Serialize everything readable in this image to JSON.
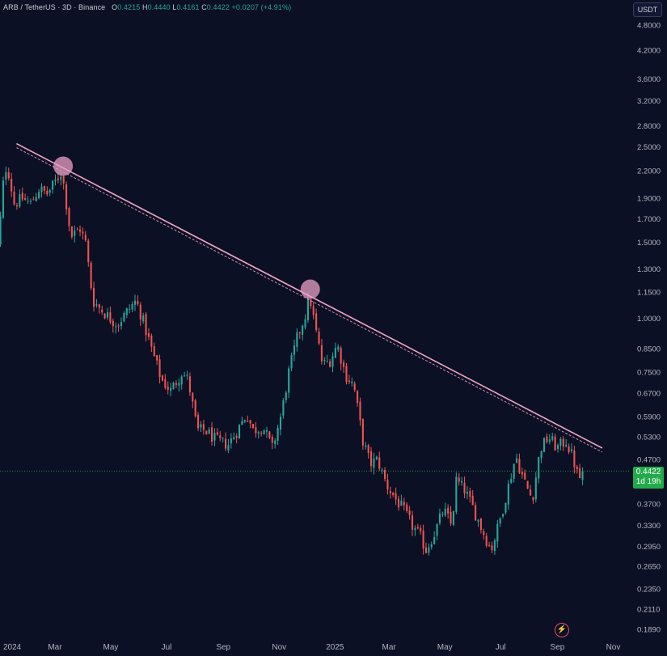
{
  "header": {
    "symbol": "ARB / TetherUS · 3D · Binance",
    "o_label": "O",
    "o_value": "0.4215",
    "h_label": "H",
    "h_value": "0.4440",
    "l_label": "L",
    "l_value": "0.4161",
    "c_label": "C",
    "c_value": "0.4422",
    "change": "+0.0207 (+4.91%)"
  },
  "unit_label": "USDT",
  "price_badge": {
    "price": "0.4422",
    "countdown": "1d 19h"
  },
  "colors": {
    "background": "#0c1024",
    "up": "#26a69a",
    "down": "#ef5350",
    "trendline": "#f2a6c8",
    "touch_point": "#e8a0c6",
    "current_price_line": "#22ab4a"
  },
  "chart_data": {
    "type": "candlestick",
    "interval": "3D",
    "y_scale": "log",
    "ylim": [
      0.18,
      5.0
    ],
    "xlim": [
      "2024-01-01",
      "2025-11-20"
    ],
    "y_ticks": [
      4.8,
      4.2,
      3.6,
      3.2,
      2.8,
      2.5,
      2.2,
      1.9,
      1.7,
      1.5,
      1.3,
      1.15,
      1.0,
      0.85,
      0.75,
      0.67,
      0.59,
      0.53,
      0.47,
      0.37,
      0.33,
      0.295,
      0.265,
      0.235,
      0.211,
      0.189
    ],
    "y_tick_labels": [
      "4.8000",
      "4.2000",
      "3.6000",
      "3.2000",
      "2.8000",
      "2.5000",
      "2.2000",
      "1.9000",
      "1.7000",
      "1.5000",
      "1.3000",
      "1.1500",
      "1.0000",
      "0.8500",
      "0.7500",
      "0.6700",
      "0.5900",
      "0.5300",
      "0.4700",
      "0.3700",
      "0.3300",
      "0.2950",
      "0.2650",
      "0.2350",
      "0.2110",
      "0.1890"
    ],
    "x_ticks": [
      {
        "date": "2024-01-01",
        "label": "2024"
      },
      {
        "date": "2024-03-01",
        "label": "Mar"
      },
      {
        "date": "2024-05-01",
        "label": "May"
      },
      {
        "date": "2024-07-01",
        "label": "Jul"
      },
      {
        "date": "2024-09-01",
        "label": "Sep"
      },
      {
        "date": "2024-11-01",
        "label": "Nov"
      },
      {
        "date": "2025-01-01",
        "label": "2025"
      },
      {
        "date": "2025-03-01",
        "label": "Mar"
      },
      {
        "date": "2025-05-01",
        "label": "May"
      },
      {
        "date": "2025-07-01",
        "label": "Jul"
      },
      {
        "date": "2025-09-01",
        "label": "Sep"
      },
      {
        "date": "2025-11-01",
        "label": "Nov"
      }
    ],
    "current_price": 0.4422,
    "trendline": {
      "start": {
        "date": "2024-01-19",
        "price": 2.55
      },
      "end": {
        "date": "2025-10-20",
        "price": 0.5
      }
    },
    "touch_points": [
      {
        "date": "2024-03-10",
        "price": 2.26
      },
      {
        "date": "2024-12-05",
        "price": 1.17
      }
    ],
    "anchors": [
      [
        "2023-12-25",
        1.1
      ],
      [
        "2024-01-02",
        1.6
      ],
      [
        "2024-01-06",
        2.05
      ],
      [
        "2024-01-10",
        2.3
      ],
      [
        "2024-01-18",
        1.85
      ],
      [
        "2024-01-27",
        1.9
      ],
      [
        "2024-02-05",
        1.85
      ],
      [
        "2024-02-14",
        2.0
      ],
      [
        "2024-02-23",
        1.95
      ],
      [
        "2024-03-01",
        2.05
      ],
      [
        "2024-03-10",
        2.2
      ],
      [
        "2024-03-20",
        1.55
      ],
      [
        "2024-03-30",
        1.62
      ],
      [
        "2024-04-05",
        1.5
      ],
      [
        "2024-04-13",
        1.1
      ],
      [
        "2024-04-22",
        1.05
      ],
      [
        "2024-05-02",
        1.0
      ],
      [
        "2024-05-10",
        0.97
      ],
      [
        "2024-05-22",
        1.05
      ],
      [
        "2024-05-30",
        1.1
      ],
      [
        "2024-06-06",
        1.0
      ],
      [
        "2024-06-16",
        0.85
      ],
      [
        "2024-06-27",
        0.72
      ],
      [
        "2024-07-07",
        0.68
      ],
      [
        "2024-07-19",
        0.75
      ],
      [
        "2024-07-26",
        0.72
      ],
      [
        "2024-08-05",
        0.55
      ],
      [
        "2024-08-14",
        0.55
      ],
      [
        "2024-08-26",
        0.52
      ],
      [
        "2024-09-08",
        0.51
      ],
      [
        "2024-09-20",
        0.56
      ],
      [
        "2024-09-28",
        0.6
      ],
      [
        "2024-10-05",
        0.55
      ],
      [
        "2024-10-16",
        0.56
      ],
      [
        "2024-10-26",
        0.5
      ],
      [
        "2024-11-05",
        0.6
      ],
      [
        "2024-11-13",
        0.75
      ],
      [
        "2024-11-22",
        0.9
      ],
      [
        "2024-12-01",
        1.02
      ],
      [
        "2024-12-06",
        1.12
      ],
      [
        "2024-12-12",
        0.95
      ],
      [
        "2024-12-20",
        0.78
      ],
      [
        "2024-12-28",
        0.8
      ],
      [
        "2025-01-05",
        0.87
      ],
      [
        "2025-01-14",
        0.74
      ],
      [
        "2025-01-23",
        0.7
      ],
      [
        "2025-02-02",
        0.52
      ],
      [
        "2025-02-10",
        0.46
      ],
      [
        "2025-02-18",
        0.47
      ],
      [
        "2025-02-28",
        0.41
      ],
      [
        "2025-03-10",
        0.38
      ],
      [
        "2025-03-18",
        0.36
      ],
      [
        "2025-03-28",
        0.33
      ],
      [
        "2025-04-06",
        0.31
      ],
      [
        "2025-04-12",
        0.29
      ],
      [
        "2025-04-22",
        0.32
      ],
      [
        "2025-05-01",
        0.36
      ],
      [
        "2025-05-10",
        0.33
      ],
      [
        "2025-05-15",
        0.42
      ],
      [
        "2025-05-24",
        0.4
      ],
      [
        "2025-06-03",
        0.36
      ],
      [
        "2025-06-13",
        0.32
      ],
      [
        "2025-06-22",
        0.29
      ],
      [
        "2025-06-30",
        0.33
      ],
      [
        "2025-07-10",
        0.4
      ],
      [
        "2025-07-19",
        0.48
      ],
      [
        "2025-07-28",
        0.42
      ],
      [
        "2025-08-06",
        0.38
      ],
      [
        "2025-08-15",
        0.5
      ],
      [
        "2025-08-24",
        0.53
      ],
      [
        "2025-09-02",
        0.5
      ],
      [
        "2025-09-12",
        0.52
      ],
      [
        "2025-09-20",
        0.47
      ],
      [
        "2025-09-26",
        0.42
      ],
      [
        "2025-09-29",
        0.4422
      ]
    ]
  }
}
